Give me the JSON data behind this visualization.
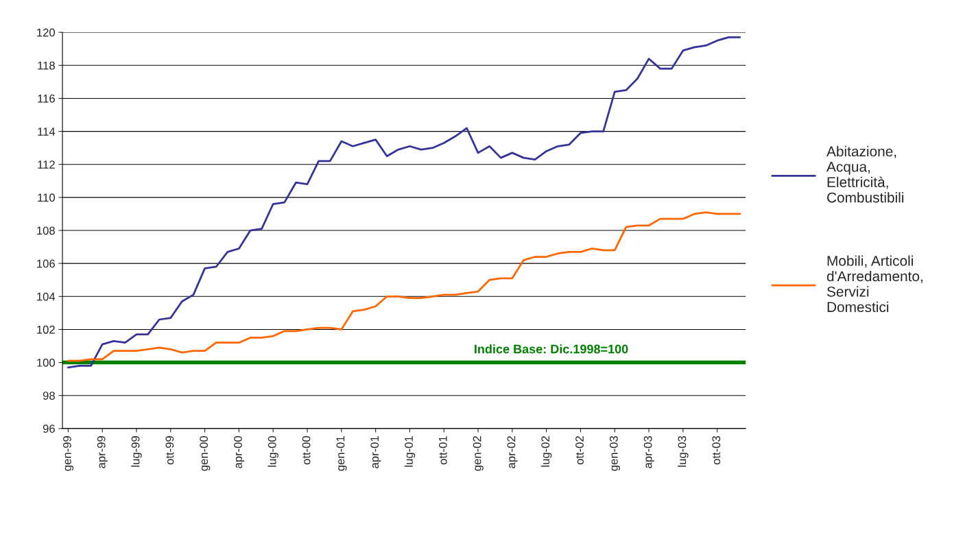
{
  "chart_data": {
    "type": "line",
    "categories": [
      "gen-99",
      null,
      null,
      "apr-99",
      null,
      null,
      "lug-99",
      null,
      null,
      "ott-99",
      null,
      null,
      "gen-00",
      null,
      null,
      "apr-00",
      null,
      null,
      "lug-00",
      null,
      null,
      "ott-00",
      null,
      null,
      "gen-01",
      null,
      null,
      "apr-01",
      null,
      null,
      "lug-01",
      null,
      null,
      "ott-01",
      null,
      null,
      "gen-02",
      null,
      null,
      "apr-02",
      null,
      null,
      "lug-02",
      null,
      null,
      "ott-02",
      null,
      null,
      "gen-03",
      null,
      null,
      "apr-03",
      null,
      null,
      "lug-03",
      null,
      null,
      "ott-03",
      null,
      null
    ],
    "series": [
      {
        "name": "Abitazione, Acqua, Elettricità, Combustibili",
        "color": "#333399",
        "values": [
          99.7,
          99.8,
          99.8,
          101.1,
          101.3,
          101.2,
          101.7,
          101.7,
          102.6,
          102.7,
          103.7,
          104.1,
          105.7,
          105.8,
          106.7,
          106.9,
          108.0,
          108.1,
          109.6,
          109.7,
          110.9,
          110.8,
          112.2,
          112.2,
          113.4,
          113.1,
          113.3,
          113.5,
          112.5,
          112.9,
          113.1,
          112.9,
          113.0,
          113.3,
          113.7,
          114.2,
          112.7,
          113.1,
          112.4,
          112.7,
          112.4,
          112.3,
          112.8,
          113.1,
          113.2,
          113.9,
          114.0,
          114.0,
          116.4,
          116.5,
          117.2,
          118.4,
          117.8,
          117.8,
          118.9,
          119.1,
          119.2,
          119.5,
          119.7,
          119.7
        ]
      },
      {
        "name": "Mobili, Articoli d'Arredamento, Servizi Domestici",
        "color": "#ff6600",
        "values": [
          100.1,
          100.1,
          100.2,
          100.2,
          100.7,
          100.7,
          100.7,
          100.8,
          100.9,
          100.8,
          100.6,
          100.7,
          100.7,
          101.2,
          101.2,
          101.2,
          101.5,
          101.5,
          101.6,
          101.9,
          101.9,
          102.0,
          102.1,
          102.1,
          102.0,
          103.1,
          103.2,
          103.4,
          104.0,
          104.0,
          103.9,
          103.9,
          104.0,
          104.1,
          104.1,
          104.2,
          104.3,
          105.0,
          105.1,
          105.1,
          106.2,
          106.4,
          106.4,
          106.6,
          106.7,
          106.7,
          106.9,
          106.8,
          106.8,
          108.2,
          108.3,
          108.3,
          108.7,
          108.7,
          108.7,
          109.0,
          109.1,
          109.0,
          109.0,
          109.0
        ]
      }
    ],
    "ylim": [
      96,
      120
    ],
    "yticks": [
      96,
      98,
      100,
      102,
      104,
      106,
      108,
      110,
      112,
      114,
      116,
      118,
      120
    ],
    "grid": "y",
    "legend": "right",
    "marker": "none",
    "line_style": "solid",
    "ref_lines": [
      {
        "axis": "y",
        "value": 100,
        "label": "Indice Base: Dic.1998=100",
        "color": "#008000"
      }
    ]
  }
}
